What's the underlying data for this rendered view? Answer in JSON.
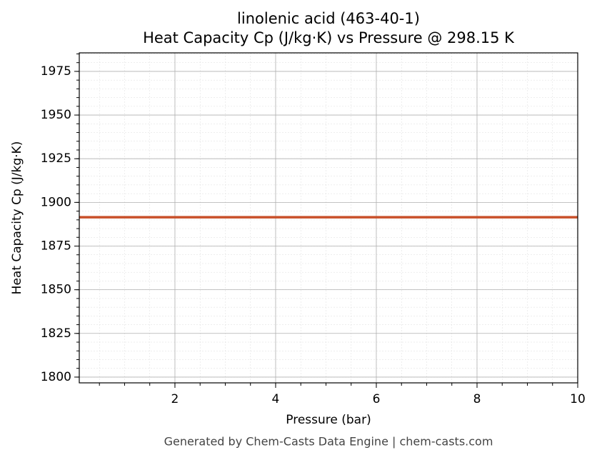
{
  "chart_data": {
    "type": "line",
    "title": "linolenic acid (463-40-1)",
    "subtitle": "Heat Capacity Cp (J/kg·K) vs Pressure @ 298.15 K",
    "x_label": "Pressure (bar)",
    "y_label": "Heat Capacity Cp (J/kg·K)",
    "footer": "Generated by Chem-Casts Data Engine | chem-casts.com",
    "x": [
      0.1,
      10
    ],
    "series": [
      {
        "name": "Cp",
        "color": "#c8502a",
        "values": [
          1891.5,
          1891.5
        ]
      }
    ],
    "xlim": [
      0.1,
      10
    ],
    "xticks": [
      2,
      4,
      6,
      8,
      10
    ],
    "ylim": [
      1796.7,
      1985.6
    ],
    "yticks": [
      1800,
      1825,
      1850,
      1875,
      1900,
      1925,
      1950,
      1975
    ],
    "grid": true,
    "minor_grid": true,
    "legend": false
  }
}
